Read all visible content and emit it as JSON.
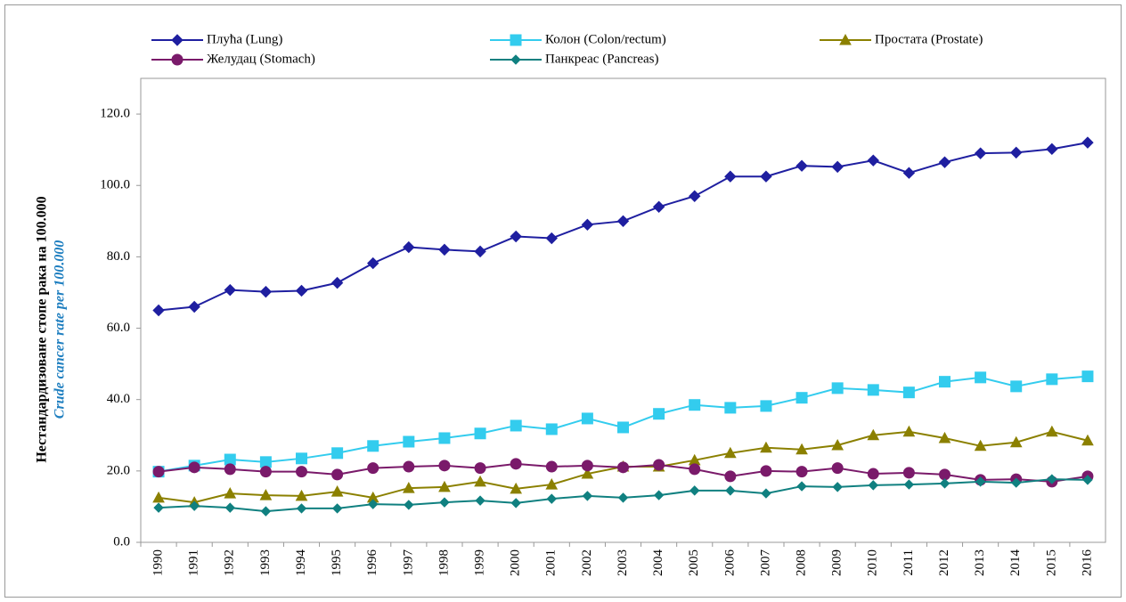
{
  "chart_data": {
    "type": "line",
    "y_label": "Нестандардизоване стопе рака на 100.000",
    "y_label_2": "Crude cancer  rate per 100.000",
    "categories": [
      "1990",
      "1991",
      "1992",
      "1993",
      "1994",
      "1995",
      "1996",
      "1997",
      "1998",
      "1999",
      "2000",
      "2001",
      "2002",
      "2003",
      "2004",
      "2005",
      "2006",
      "2007",
      "2008",
      "2009",
      "2010",
      "2011",
      "2012",
      "2013",
      "2014",
      "2015",
      "2016"
    ],
    "series": [
      {
        "name": "Плућа (Lung)",
        "color": "#1f1fa0",
        "marker": "diamond",
        "values": [
          65.0,
          66.0,
          70.7,
          70.2,
          70.5,
          72.7,
          78.2,
          82.7,
          82.0,
          81.5,
          85.7,
          85.2,
          89.0,
          90.0,
          94.0,
          97.0,
          102.5,
          102.5,
          105.5,
          105.2,
          107.0,
          103.5,
          106.5,
          109.0,
          109.2,
          110.2,
          112.0
        ]
      },
      {
        "name": "Колон (Colon/rectum)",
        "color": "#33ccee",
        "marker": "square",
        "values": [
          19.8,
          21.5,
          23.2,
          22.5,
          23.5,
          25.0,
          27.0,
          28.2,
          29.2,
          30.5,
          32.7,
          31.7,
          34.7,
          32.2,
          36.0,
          38.5,
          37.7,
          38.2,
          40.5,
          43.2,
          42.7,
          42.0,
          45.0,
          46.2,
          43.7,
          45.7,
          46.5
        ]
      },
      {
        "name": "Простата (Prostate)",
        "color": "#8b8000",
        "marker": "triangle",
        "values": [
          12.5,
          11.2,
          13.7,
          13.2,
          13.0,
          14.2,
          12.5,
          15.2,
          15.5,
          17.0,
          15.0,
          16.2,
          19.2,
          21.2,
          21.2,
          23.0,
          25.0,
          26.5,
          26.0,
          27.2,
          30.0,
          31.0,
          29.2,
          27.0,
          28.0,
          31.0,
          28.5
        ]
      },
      {
        "name": "Желудац (Stomach)",
        "color": "#7a1a6a",
        "marker": "circle",
        "values": [
          19.8,
          21.0,
          20.5,
          19.8,
          19.8,
          19.0,
          20.8,
          21.2,
          21.5,
          20.8,
          22.0,
          21.2,
          21.5,
          21.0,
          21.7,
          20.5,
          18.5,
          20.0,
          19.8,
          20.8,
          19.2,
          19.5,
          19.0,
          17.5,
          17.7,
          17.0,
          18.5
        ]
      },
      {
        "name": "Панкреас (Pancreas)",
        "color": "#108080",
        "marker": "small-diamond",
        "values": [
          9.7,
          10.2,
          9.7,
          8.7,
          9.5,
          9.5,
          10.7,
          10.5,
          11.2,
          11.7,
          11.0,
          12.2,
          13.0,
          12.5,
          13.2,
          14.5,
          14.5,
          13.7,
          15.7,
          15.5,
          16.0,
          16.2,
          16.5,
          17.0,
          16.7,
          17.7,
          17.5
        ]
      }
    ],
    "ylim": [
      0,
      130
    ],
    "yticks": [
      {
        "value": 0,
        "label": "0.0"
      },
      {
        "value": 20,
        "label": "20.0"
      },
      {
        "value": 40,
        "label": "40.0"
      },
      {
        "value": 60,
        "label": "60.0"
      },
      {
        "value": 80,
        "label": "80.0"
      },
      {
        "value": 100,
        "label": "100.0"
      },
      {
        "value": 120,
        "label": "120.0"
      }
    ]
  }
}
